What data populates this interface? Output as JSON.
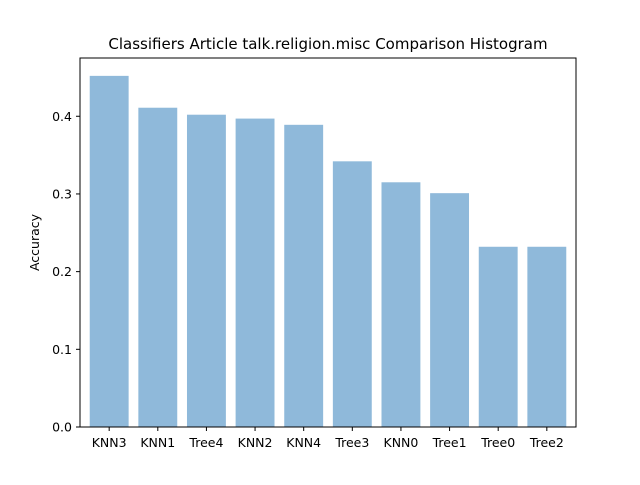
{
  "chart_data": {
    "type": "bar",
    "title": "Classifiers Article talk.religion.misc Comparison Histogram",
    "xlabel": "",
    "ylabel": "Accuracy",
    "categories": [
      "KNN3",
      "KNN1",
      "Tree4",
      "KNN2",
      "KNN4",
      "Tree3",
      "KNN0",
      "Tree1",
      "Tree0",
      "Tree2"
    ],
    "values": [
      0.452,
      0.411,
      0.402,
      0.397,
      0.389,
      0.342,
      0.315,
      0.301,
      0.232,
      0.232
    ],
    "ylim": [
      0,
      0.475
    ],
    "yticks": [
      0.0,
      0.1,
      0.2,
      0.3,
      0.4
    ],
    "ytick_labels": [
      "0.0",
      "0.1",
      "0.2",
      "0.3",
      "0.4"
    ],
    "bar_color": "#8fb9da",
    "grid": false,
    "legend": false
  }
}
